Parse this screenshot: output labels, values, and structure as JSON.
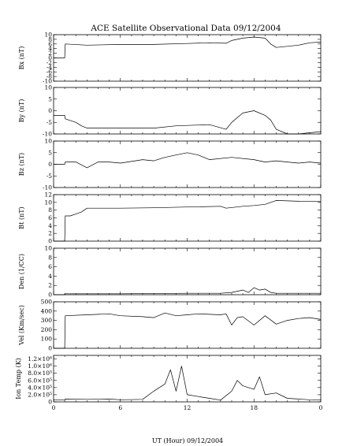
{
  "chart_data": {
    "type": "line",
    "title": "ACE Satellite Observational Data  09/12/2004",
    "xlabel": "UT (Hour)  09/12/2004",
    "x_range": [
      0,
      24
    ],
    "x_tick_labels": [
      "0",
      "6",
      "12",
      "18",
      "0"
    ],
    "grid": false,
    "panels": [
      {
        "name": "bx",
        "ylabel": "Bx (nT)",
        "ylim": [
          -10,
          10
        ],
        "y_tick_labels": [
          "10",
          "8",
          "6",
          "4",
          "2",
          "0",
          "-2",
          "-4",
          "-6",
          "-8",
          "-10"
        ],
        "x": [
          0,
          1,
          1.05,
          3,
          6,
          9,
          12,
          14,
          15.5,
          16,
          17,
          18,
          19,
          19.5,
          20,
          21,
          22,
          23,
          24
        ],
        "values": [
          0,
          0,
          6,
          5.5,
          5.8,
          5.8,
          6.2,
          6.5,
          6.3,
          7.5,
          8.5,
          9,
          8.5,
          6,
          4.5,
          5,
          5.5,
          6.5,
          6.8
        ]
      },
      {
        "name": "by",
        "ylabel": "By (nT)",
        "ylim": [
          -10,
          10
        ],
        "y_tick_labels": [
          "10",
          "5",
          "0",
          "-5",
          "-10"
        ],
        "x": [
          0,
          1,
          1.05,
          2,
          2.5,
          3,
          6,
          9,
          11,
          14,
          15.5,
          16,
          17,
          18,
          19,
          19.5,
          20,
          21,
          22,
          23,
          24
        ],
        "values": [
          -2,
          -2,
          -3.5,
          -5,
          -6.5,
          -7.5,
          -7.5,
          -7.5,
          -6.5,
          -6,
          -8,
          -5,
          -1,
          0,
          -2,
          -4,
          -8,
          -10,
          -10,
          -9.5,
          -9
        ]
      },
      {
        "name": "bz",
        "ylabel": "Bz (nT)",
        "ylim": [
          -10,
          10
        ],
        "y_tick_labels": [
          "10",
          "5",
          "0",
          "-5",
          "-10"
        ],
        "x": [
          0,
          1,
          1.05,
          2,
          3,
          4,
          5,
          6,
          8,
          9,
          10,
          11,
          12,
          13,
          14,
          16,
          18,
          19,
          20,
          21,
          22,
          23,
          24
        ],
        "values": [
          0,
          0,
          1,
          1,
          -1.5,
          1,
          1,
          0.5,
          2,
          1.5,
          3,
          4,
          5,
          4,
          2,
          3,
          2,
          1,
          1.5,
          1,
          0.5,
          1,
          0.5
        ]
      },
      {
        "name": "bt",
        "ylabel": "Bt (nT)",
        "ylim": [
          0,
          12
        ],
        "y_tick_labels": [
          "12",
          "10",
          "8",
          "6",
          "4",
          "2",
          "0"
        ],
        "x": [
          0,
          1,
          1.05,
          1.5,
          2,
          2.5,
          3,
          6,
          9,
          12,
          15,
          15.5,
          17,
          18,
          19,
          20,
          22,
          24
        ],
        "values": [
          0,
          0,
          6.5,
          6.5,
          7,
          7.5,
          8.5,
          8.5,
          8.6,
          8.8,
          9,
          8.5,
          9,
          9.2,
          9.5,
          10.5,
          10.3,
          10.2
        ]
      },
      {
        "name": "den",
        "ylabel": "Den (1/CC)",
        "ylim": [
          0,
          10
        ],
        "y_tick_labels": [
          "10",
          "8",
          "6",
          "4",
          "2",
          "0"
        ],
        "x": [
          0,
          1,
          1.05,
          6,
          12,
          15,
          16,
          17,
          17.5,
          18,
          18.5,
          19,
          19.5,
          20,
          24
        ],
        "values": [
          0,
          0,
          0.2,
          0.2,
          0.3,
          0.3,
          0.5,
          1,
          0.5,
          1.5,
          1,
          1.2,
          0.5,
          0.3,
          0.3
        ]
      },
      {
        "name": "vel",
        "ylabel": "Vel (Km/sec)",
        "ylim": [
          0,
          500
        ],
        "y_tick_labels": [
          "500",
          "400",
          "300",
          "200",
          "100",
          "0"
        ],
        "x": [
          0,
          1,
          1.05,
          3,
          5,
          6,
          8,
          9,
          10,
          11,
          12,
          13,
          14,
          15,
          15.5,
          16,
          16.5,
          17,
          18,
          19,
          20,
          21,
          22,
          23,
          24
        ],
        "values": [
          0,
          0,
          350,
          360,
          370,
          350,
          340,
          330,
          380,
          350,
          360,
          370,
          365,
          360,
          370,
          250,
          330,
          340,
          250,
          350,
          260,
          300,
          320,
          330,
          310
        ]
      },
      {
        "name": "temp",
        "ylabel": "Ion Temp (K)",
        "ylim": [
          0,
          1300000
        ],
        "y_tick_labels": [
          "1.2×10⁶",
          "1.0×10⁶",
          "8.0×10⁵",
          "6.0×10⁵",
          "4.0×10⁵",
          "2.0×10⁵",
          "0"
        ],
        "x": [
          0,
          1,
          1.05,
          3,
          5,
          6,
          8,
          9,
          10,
          10.5,
          11,
          11.5,
          12,
          13,
          14,
          15,
          16,
          16.5,
          17,
          18,
          18.5,
          19,
          20,
          21,
          22,
          23,
          24
        ],
        "values": [
          50000,
          50000,
          80000,
          70000,
          80000,
          60000,
          70000,
          300000,
          500000,
          900000,
          300000,
          1000000,
          200000,
          150000,
          100000,
          50000,
          300000,
          600000,
          450000,
          350000,
          700000,
          200000,
          250000,
          100000,
          80000,
          60000,
          50000
        ]
      }
    ]
  }
}
